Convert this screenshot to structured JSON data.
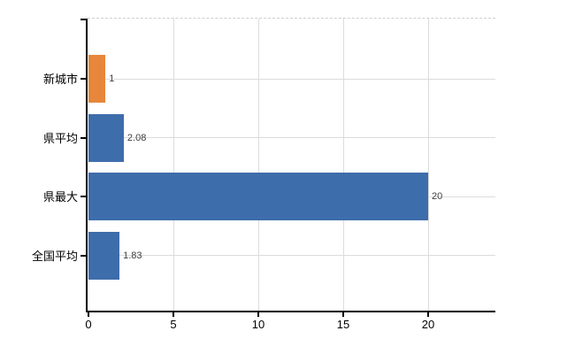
{
  "chart_data": {
    "type": "bar",
    "orientation": "horizontal",
    "title": "",
    "xlabel": "",
    "ylabel": "",
    "categories": [
      "新城市",
      "県平均",
      "県最大",
      "全国平均"
    ],
    "values": [
      1,
      2.08,
      20,
      1.83
    ],
    "value_labels": [
      "1",
      "2.08",
      "20",
      "1.83"
    ],
    "bar_colors": [
      "#e6873c",
      "#3e6dab",
      "#3e6dab",
      "#3e6dab"
    ],
    "x_ticks": [
      0,
      5,
      10,
      15,
      20
    ],
    "x_tick_labels": [
      "0",
      "5",
      "10",
      "15",
      "20"
    ],
    "xlim": [
      0,
      23.9
    ],
    "grid": true,
    "legend": "none",
    "plot_border_top_style": "dashed"
  },
  "colors": {
    "background": "#ffffff",
    "bar_orange": "#e6873c",
    "bar_blue": "#3e6dab",
    "axis": "#000000",
    "gridline": "#d9d9d9",
    "value_label": "#404040",
    "tick_label": "#000000"
  }
}
